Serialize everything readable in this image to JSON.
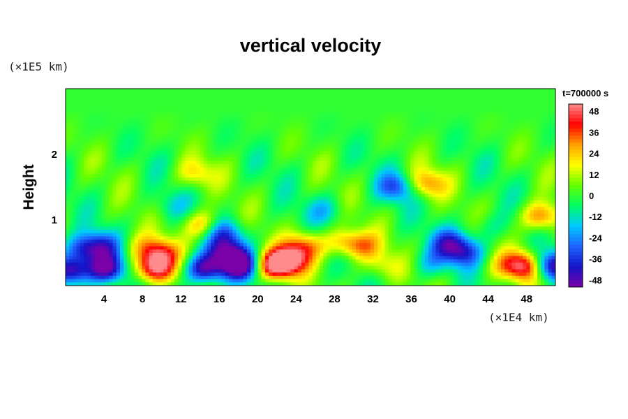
{
  "chart_data": {
    "type": "heatmap",
    "title": "vertical velocity",
    "time_label": "t=700000 s",
    "xlabel": "",
    "ylabel": "Height",
    "x_unit": "(×1E4 km)",
    "y_unit": "(×1E5 km)",
    "xlim": [
      0,
      51
    ],
    "ylim": [
      0,
      3
    ],
    "x_ticks": [
      "4",
      "8",
      "12",
      "16",
      "20",
      "24",
      "28",
      "32",
      "36",
      "40",
      "44",
      "48"
    ],
    "y_ticks": [
      "1",
      "2"
    ],
    "colorbar": {
      "range": [
        -52,
        52
      ],
      "ticks": [
        "48",
        "36",
        "24",
        "12",
        "0",
        "-12",
        "-24",
        "-36",
        "-48"
      ],
      "colors": [
        "#7a00a8",
        "#1414c8",
        "#1e64ff",
        "#00c8ff",
        "#00ff64",
        "#64ff00",
        "#ffff00",
        "#ffa000",
        "#ff0000",
        "#ff8c8c"
      ]
    },
    "features": [
      {
        "x": 0.6,
        "y": 0.22,
        "value": -50
      },
      {
        "x": 1.8,
        "y": 0.55,
        "value": -30
      },
      {
        "x": 4.2,
        "y": 0.25,
        "value": -48
      },
      {
        "x": 3.8,
        "y": 0.6,
        "value": -30
      },
      {
        "x": 9.2,
        "y": 0.25,
        "value": 50
      },
      {
        "x": 9.8,
        "y": 0.5,
        "value": 36
      },
      {
        "x": 14.5,
        "y": 0.25,
        "value": -48
      },
      {
        "x": 16.8,
        "y": 0.5,
        "value": -40
      },
      {
        "x": 18.2,
        "y": 0.3,
        "value": -50
      },
      {
        "x": 16.5,
        "y": 0.8,
        "value": -30
      },
      {
        "x": 21.8,
        "y": 0.3,
        "value": 52
      },
      {
        "x": 23.5,
        "y": 0.4,
        "value": 40
      },
      {
        "x": 25.0,
        "y": 0.62,
        "value": 30
      },
      {
        "x": 29.0,
        "y": 0.65,
        "value": 24
      },
      {
        "x": 31.0,
        "y": 0.6,
        "value": 22
      },
      {
        "x": 33.0,
        "y": 0.3,
        "value": 15
      },
      {
        "x": 40.0,
        "y": 0.65,
        "value": -30
      },
      {
        "x": 41.5,
        "y": 0.5,
        "value": -32
      },
      {
        "x": 38.0,
        "y": 0.35,
        "value": -15
      },
      {
        "x": 47.8,
        "y": 0.3,
        "value": 48
      },
      {
        "x": 50.5,
        "y": 0.3,
        "value": -48
      },
      {
        "x": 49.5,
        "y": 1.05,
        "value": 35
      },
      {
        "x": 34.5,
        "y": 1.5,
        "value": -30
      },
      {
        "x": 37.5,
        "y": 1.55,
        "value": 30
      },
      {
        "x": 14.3,
        "y": 0.92,
        "value": 28
      },
      {
        "x": 13.5,
        "y": 1.7,
        "value": 20
      },
      {
        "x": 7.5,
        "y": 0.6,
        "value": 12
      },
      {
        "x": 11.0,
        "y": 1.2,
        "value": -10
      },
      {
        "x": 27.0,
        "y": 1.15,
        "value": -14
      },
      {
        "x": 44.0,
        "y": 0.9,
        "value": -10
      },
      {
        "x": 45.5,
        "y": 0.3,
        "value": 12
      }
    ]
  }
}
